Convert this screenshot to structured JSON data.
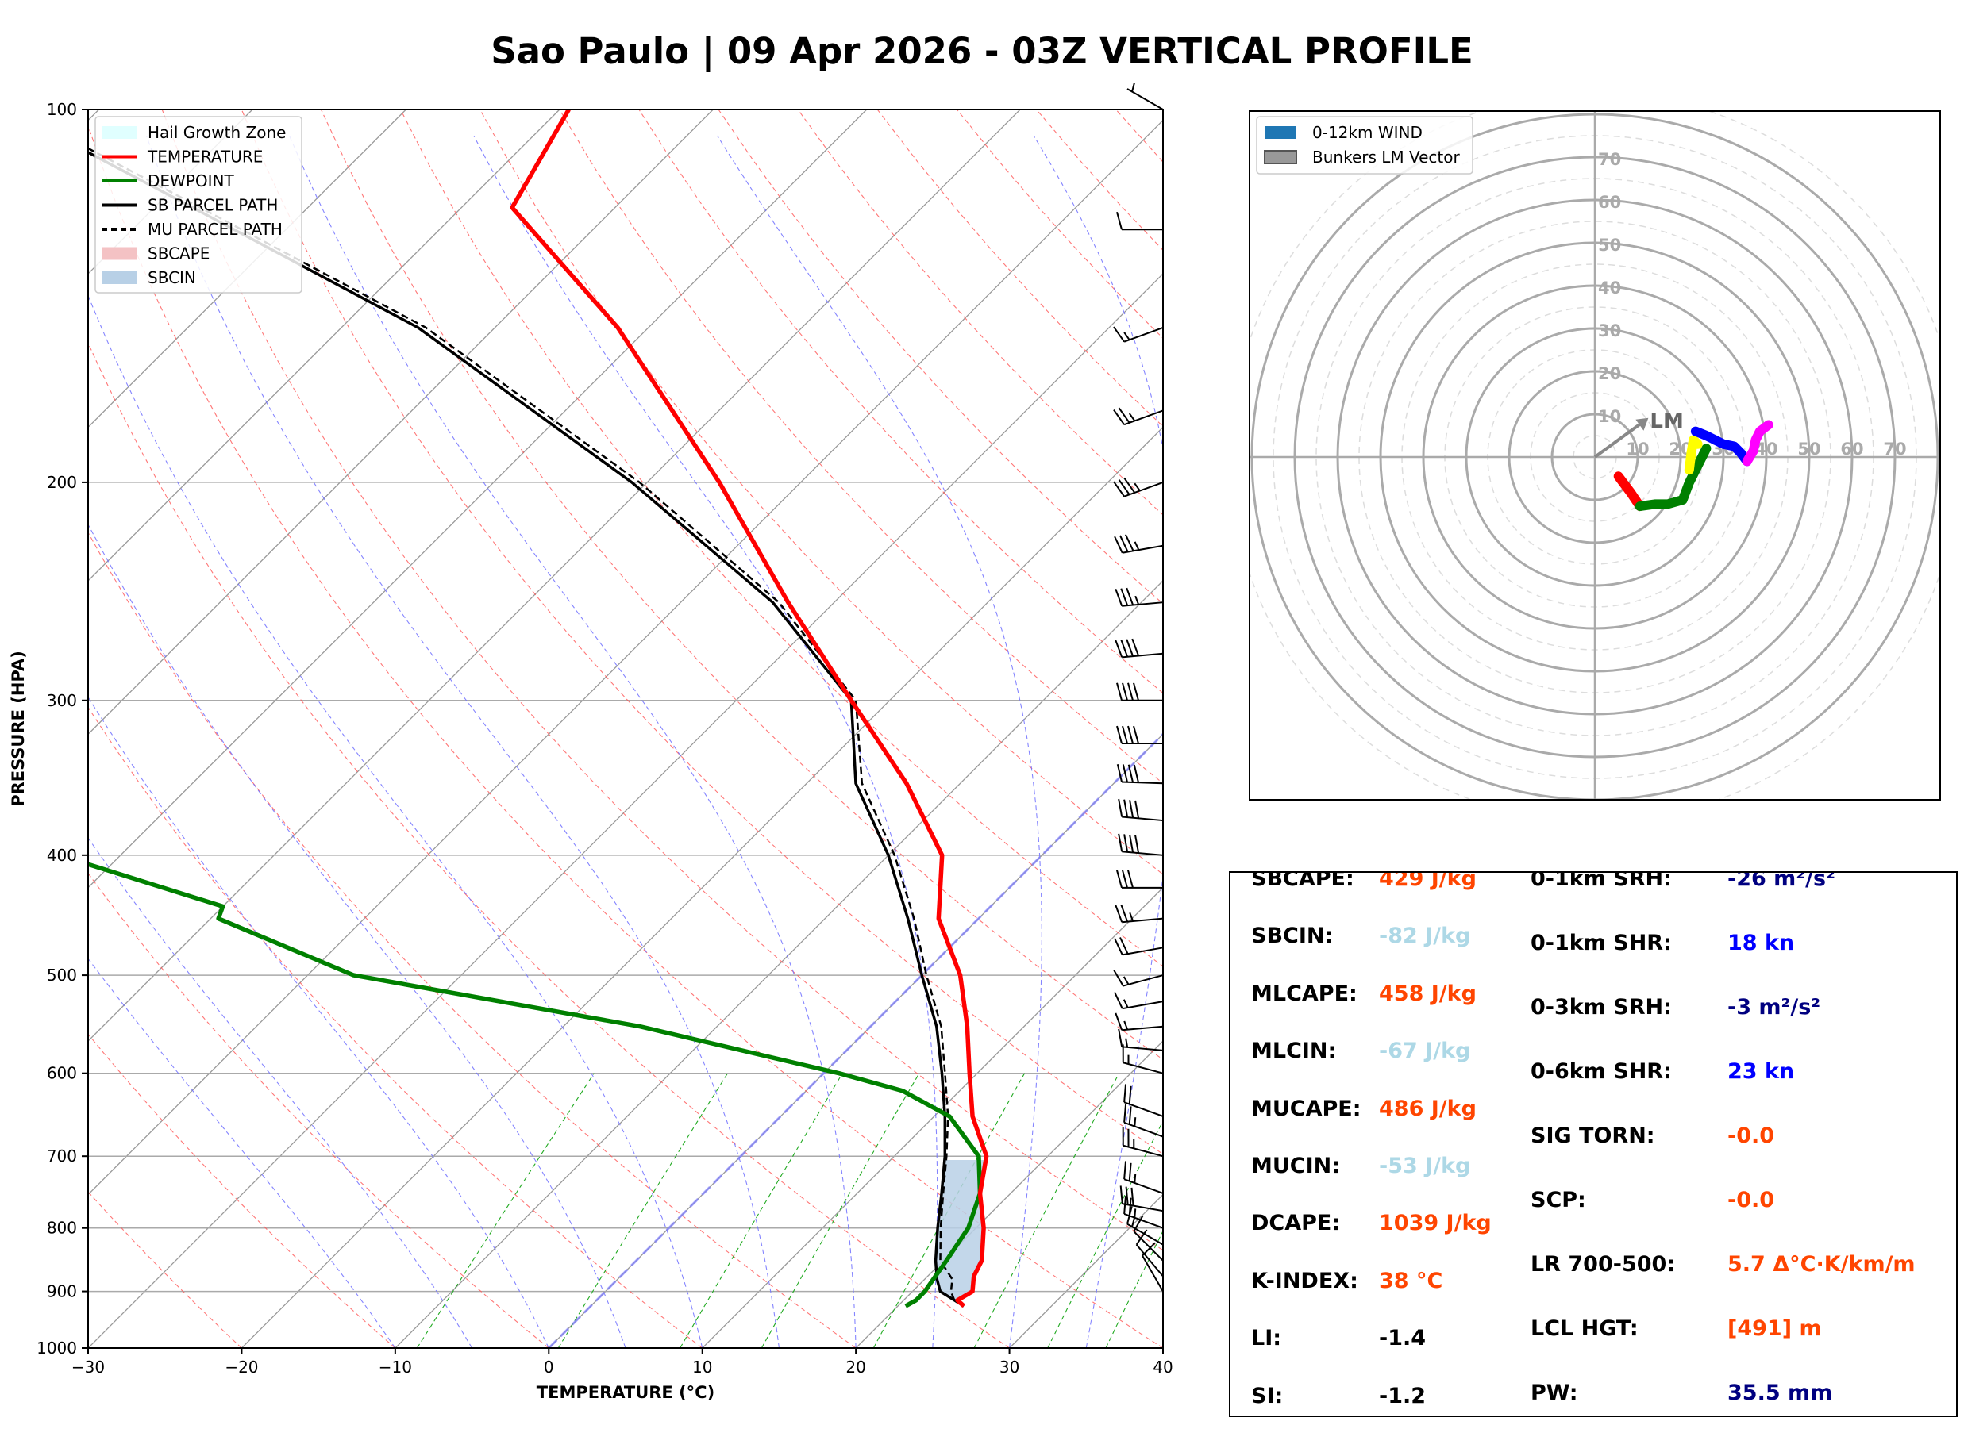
{
  "title": "Sao Paulo | 09 Apr 2026 - 03Z VERTICAL PROFILE",
  "colors": {
    "temperature": "#ff0000",
    "dewpoint": "#008000",
    "parcel": "#000000",
    "sbcape_fill": "#f4c2c4",
    "sbcin_fill": "#b8d0e6",
    "hail_zone": "#e0ffff",
    "dry_adiabat": "#ff5555",
    "moist_adiabat": "#7070ff",
    "mixing_ratio": "#22aa22",
    "isotherm": "#999999",
    "value_orange": "#ff4500",
    "value_lightblue": "#add8e6",
    "value_navy": "#000080",
    "value_blue": "#0000ff",
    "value_black": "#000000"
  },
  "chart_data": [
    {
      "type": "line",
      "subtype": "skew-t",
      "xlabel": "TEMPERATURE (°C)",
      "ylabel": "PRESSURE (HPA)",
      "xlim": [
        -30,
        40
      ],
      "ylim": [
        1000,
        100
      ],
      "y_scale": "log",
      "x_ticks": [
        "−30",
        "−20",
        "−10",
        "0",
        "10",
        "20",
        "30",
        "40"
      ],
      "x_tick_values": [
        -30,
        -20,
        -10,
        0,
        10,
        20,
        30,
        40
      ],
      "y_ticks": [
        100,
        200,
        300,
        400,
        500,
        600,
        700,
        800,
        900,
        1000
      ],
      "grid": true,
      "legend_position": "top-left",
      "legend": [
        {
          "label": "Hail Growth Zone",
          "style": "fill",
          "color": "#e0ffff"
        },
        {
          "label": "TEMPERATURE",
          "style": "line",
          "color": "#ff0000"
        },
        {
          "label": "DEWPOINT",
          "style": "line",
          "color": "#008000"
        },
        {
          "label": "SB PARCEL PATH",
          "style": "line",
          "color": "#000000"
        },
        {
          "label": "MU PARCEL PATH",
          "style": "dash",
          "color": "#000000"
        },
        {
          "label": "SBCAPE",
          "style": "fill",
          "color": "#f4c2c4"
        },
        {
          "label": "SBCIN",
          "style": "fill",
          "color": "#b8d0e6"
        }
      ],
      "series": [
        {
          "name": "TEMPERATURE",
          "pressure": [
            925,
            915,
            900,
            875,
            850,
            800,
            750,
            700,
            650,
            600,
            550,
            500,
            450,
            400,
            350,
            300,
            250,
            200,
            150,
            120,
            100
          ],
          "values": [
            24.3,
            23.5,
            23.9,
            23.0,
            22.5,
            20.5,
            18.0,
            16.0,
            12.5,
            9.5,
            6.3,
            2.5,
            -2.6,
            -6.5,
            -13.5,
            -22.5,
            -33.0,
            -45.3,
            -62.0,
            -76.7,
            -79.4
          ]
        },
        {
          "name": "DEWPOINT",
          "pressure": [
            925,
            915,
            900,
            875,
            850,
            800,
            750,
            700,
            650,
            620,
            600,
            550,
            500,
            450,
            440,
            400,
            380,
            350,
            300,
            260,
            200,
            180,
            150,
            120,
            100
          ],
          "values": [
            20.5,
            20.8,
            20.8,
            20.5,
            20.2,
            19.5,
            18.0,
            15.5,
            11.0,
            6.3,
            1.0,
            -15.0,
            -37.0,
            -49.5,
            -50.0,
            -64.0,
            -70.5,
            -73.0,
            -77.0,
            -81.5,
            -94.5,
            -98.5,
            -105.5,
            -111.5,
            -120.0
          ]
        },
        {
          "name": "SB PARCEL PATH",
          "pressure": [
            925,
            900,
            880,
            850,
            800,
            750,
            700,
            650,
            600,
            550,
            500,
            450,
            400,
            350,
            300,
            250,
            200,
            150,
            120,
            100
          ],
          "values": [
            24.3,
            21.8,
            20.8,
            19.5,
            17.5,
            15.5,
            13.3,
            10.7,
            7.7,
            4.3,
            0.0,
            -4.6,
            -10.0,
            -16.8,
            -22.5,
            -34.0,
            -51.0,
            -75.0,
            -97.5,
            -116.0
          ]
        },
        {
          "name": "MU PARCEL PATH",
          "pressure": [
            915,
            900,
            880,
            850,
            800,
            750,
            700,
            650,
            600,
            550,
            500,
            450,
            400,
            350,
            300,
            250,
            200,
            150,
            120,
            100
          ],
          "values": [
            23.3,
            22.5,
            21.8,
            19.8,
            17.7,
            15.6,
            13.4,
            10.9,
            7.9,
            4.6,
            0.3,
            -4.2,
            -9.6,
            -16.4,
            -22.2,
            -33.6,
            -50.5,
            -74.5,
            -97.0,
            -115.5
          ]
        }
      ]
    },
    {
      "type": "scatter",
      "subtype": "hodograph",
      "ring_labels": [
        "10",
        "20",
        "30",
        "40",
        "50",
        "60",
        "70"
      ],
      "ring_values": [
        10,
        20,
        30,
        40,
        50,
        60,
        70
      ],
      "legend_position": "top-left",
      "legend": [
        {
          "label": "0-12km WIND",
          "color": "#1f77b4"
        },
        {
          "label": "Bunkers LM Vector",
          "color": "#999999"
        }
      ],
      "storm_motion_label": "LM",
      "storm_motion": [
        11,
        8
      ],
      "series": [
        {
          "color": "#ff0000",
          "points": [
            [
              5.5,
              -4.5
            ],
            [
              7.0,
              -6.5
            ],
            [
              8.5,
              -8.5
            ],
            [
              10.5,
              -11.5
            ]
          ]
        },
        {
          "color": "#008000",
          "points": [
            [
              10.5,
              -11.5
            ],
            [
              14.0,
              -11.0
            ],
            [
              17.0,
              -11.0
            ],
            [
              20.5,
              -10.0
            ],
            [
              22.0,
              -6.0
            ],
            [
              24.0,
              -2.0
            ],
            [
              26.0,
              2.0
            ]
          ]
        },
        {
          "color": "#ffff00",
          "points": [
            [
              22.0,
              -3.0
            ],
            [
              22.5,
              1.0
            ],
            [
              23.0,
              4.0
            ],
            [
              24.0,
              3.0
            ]
          ]
        },
        {
          "color": "#0000ff",
          "points": [
            [
              23.5,
              6.0
            ],
            [
              26.0,
              5.0
            ],
            [
              28.0,
              4.0
            ],
            [
              30.0,
              3.0
            ],
            [
              32.5,
              2.5
            ],
            [
              34.0,
              1.0
            ],
            [
              35.5,
              -1.0
            ]
          ]
        },
        {
          "color": "#ff00ff",
          "points": [
            [
              35.5,
              -1.0
            ],
            [
              37.0,
              1.5
            ],
            [
              37.5,
              4.0
            ],
            [
              38.5,
              6.0
            ],
            [
              40.5,
              7.5
            ]
          ]
        }
      ]
    }
  ],
  "wind_barbs": {
    "pressures": [
      100,
      125,
      150,
      175,
      200,
      225,
      250,
      275,
      300,
      325,
      350,
      375,
      400,
      425,
      450,
      475,
      500,
      525,
      550,
      575,
      600,
      650,
      675,
      700,
      750,
      775,
      800,
      825,
      850,
      875,
      900
    ],
    "direction_deg": [
      300,
      270,
      250,
      250,
      250,
      260,
      265,
      265,
      270,
      270,
      272,
      275,
      275,
      270,
      265,
      260,
      255,
      260,
      265,
      275,
      285,
      290,
      290,
      285,
      290,
      280,
      290,
      300,
      315,
      320,
      330
    ],
    "speed_kt": [
      5,
      10,
      15,
      25,
      35,
      35,
      35,
      40,
      40,
      40,
      40,
      40,
      40,
      30,
      25,
      20,
      15,
      15,
      15,
      15,
      15,
      20,
      25,
      25,
      25,
      30,
      25,
      15,
      10,
      10,
      10
    ]
  },
  "stats": {
    "left": [
      {
        "label": "SBCAPE:",
        "value": "429 J/kg",
        "color": "#ff4500"
      },
      {
        "label": "SBCIN:",
        "value": "-82 J/kg",
        "color": "#add8e6"
      },
      {
        "label": "MLCAPE:",
        "value": "458 J/kg",
        "color": "#ff4500"
      },
      {
        "label": "MLCIN:",
        "value": "-67 J/kg",
        "color": "#add8e6"
      },
      {
        "label": "MUCAPE:",
        "value": "486 J/kg",
        "color": "#ff4500"
      },
      {
        "label": "MUCIN:",
        "value": "-53 J/kg",
        "color": "#add8e6"
      },
      {
        "label": "DCAPE:",
        "value": "1039 J/kg",
        "color": "#ff4500"
      },
      {
        "label": "K-INDEX:",
        "value": "38 °C",
        "color": "#ff4500"
      },
      {
        "label": "LI:",
        "value": "-1.4",
        "color": "#000000"
      },
      {
        "label": "SI:",
        "value": "-1.2",
        "color": "#000000"
      }
    ],
    "right": [
      {
        "label": "0-1km SRH:",
        "value": "-26 m²/s²",
        "color": "#000080"
      },
      {
        "label": "0-1km SHR:",
        "value": "18 kn",
        "color": "#0000ff"
      },
      {
        "label": "0-3km SRH:",
        "value": "-3 m²/s²",
        "color": "#000080"
      },
      {
        "label": "0-6km SHR:",
        "value": "23 kn",
        "color": "#0000ff"
      },
      {
        "label": "SIG TORN:",
        "value": "-0.0",
        "color": "#ff4500"
      },
      {
        "label": "SCP:",
        "value": "-0.0",
        "color": "#ff4500"
      },
      {
        "label": "LR 700-500:",
        "value": "5.7 Δ°C·K/km/m",
        "color": "#ff4500"
      },
      {
        "label": "LCL HGT:",
        "value": "[491] m",
        "color": "#ff4500"
      },
      {
        "label": "PW:",
        "value": "35.5 mm",
        "color": "#000080"
      }
    ]
  }
}
